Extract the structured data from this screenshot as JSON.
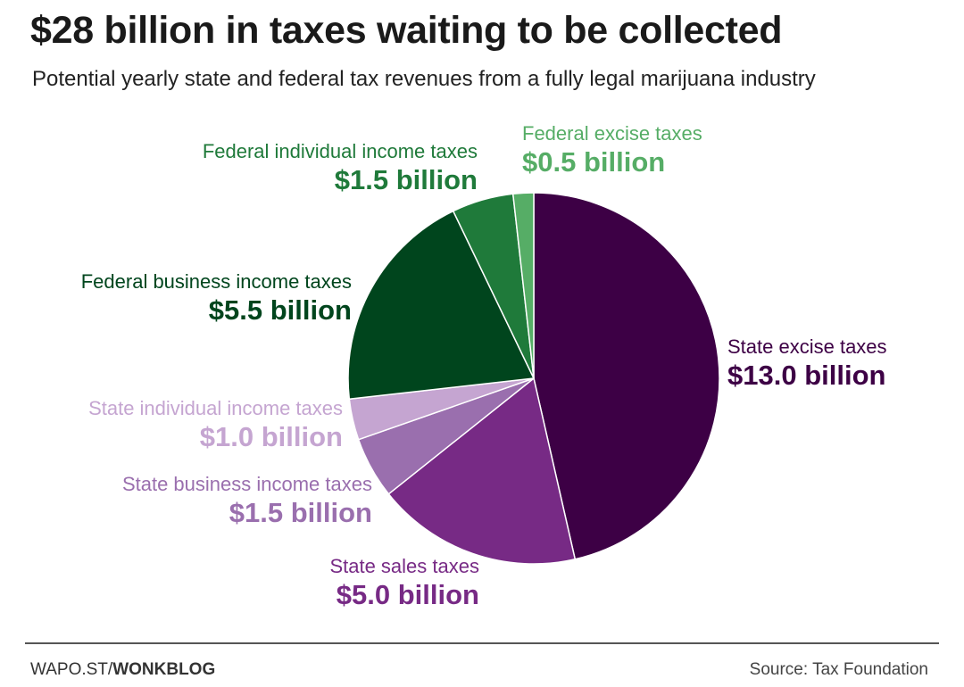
{
  "header": {
    "title": "$28 billion in taxes waiting to be collected",
    "subtitle": "Potential yearly state and federal tax revenues from a fully legal marijuana industry"
  },
  "chart_data": {
    "type": "pie",
    "title": "$28 billion in taxes waiting to be collected",
    "subtitle": "Potential yearly state and federal tax revenues from a fully legal marijuana industry",
    "unit": "billion USD",
    "slices": [
      {
        "name": "State excise taxes",
        "value": 13.0,
        "value_label": "$13.0 billion",
        "color": "#3d0045",
        "label_color": "#3d0045"
      },
      {
        "name": "State sales taxes",
        "value": 5.0,
        "value_label": "$5.0 billion",
        "color": "#772a85",
        "label_color": "#772a85"
      },
      {
        "name": "State business income taxes",
        "value": 1.5,
        "value_label": "$1.5 billion",
        "color": "#9a6fae",
        "label_color": "#9a6fae"
      },
      {
        "name": "State individual income taxes",
        "value": 1.0,
        "value_label": "$1.0 billion",
        "color": "#c5a5d1",
        "label_color": "#c5a5d1"
      },
      {
        "name": "Federal business income taxes",
        "value": 5.5,
        "value_label": "$5.5 billion",
        "color": "#00451d",
        "label_color": "#00451d"
      },
      {
        "name": "Federal individual income taxes",
        "value": 1.5,
        "value_label": "$1.5 billion",
        "color": "#1f7a3a",
        "label_color": "#1f7a3a"
      },
      {
        "name": "Federal excise taxes",
        "value": 0.5,
        "value_label": "$0.5 billion",
        "color": "#56ad66",
        "label_color": "#56ad66"
      }
    ],
    "start_angle_deg": 0,
    "direction": "clockwise"
  },
  "footer": {
    "brand_prefix": "WAPO.ST/",
    "brand_name": "WONKBLOG",
    "source": "Source: Tax Foundation"
  }
}
